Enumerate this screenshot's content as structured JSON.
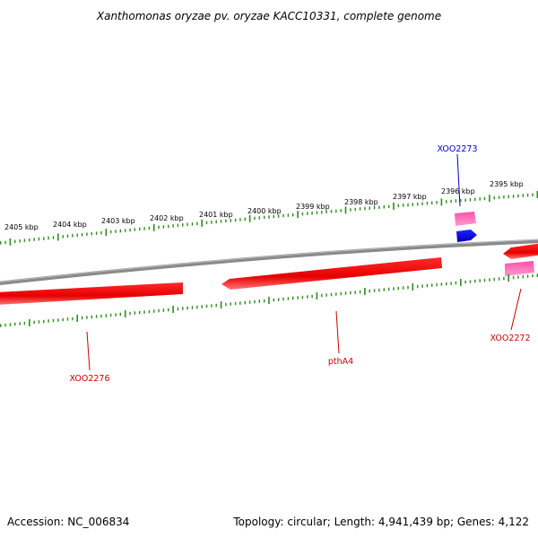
{
  "title": "Xanthomonas oryzae pv. oryzae KACC10331, complete genome",
  "scale_labels": [
    "2405 kbp",
    "2404 kbp",
    "2403 kbp",
    "2402 kbp",
    "2401 kbp",
    "2400 kbp",
    "2399 kbp",
    "2398 kbp",
    "2397 kbp",
    "2396 kbp",
    "2395 kbp"
  ],
  "genes": {
    "xoo2273": {
      "label": "XOO2273",
      "color": "#0000cc"
    },
    "xoo2276": {
      "label": "XOO2276",
      "color": "#cc0000"
    },
    "ptha4": {
      "label": "pthA4",
      "color": "#cc0000"
    },
    "xoo2272": {
      "label": "XOO2272",
      "color": "#cc0000"
    }
  },
  "colors": {
    "tick": "#2e8b1e",
    "backbone": "#808080",
    "cds_red": "#ee0000",
    "cds_pink": "#ff3399",
    "cds_blue": "#0000ee"
  },
  "footer": {
    "accession": "Accession: NC_006834",
    "stats": "Topology: circular; Length: 4,941,439 bp; Genes: 4,122"
  }
}
